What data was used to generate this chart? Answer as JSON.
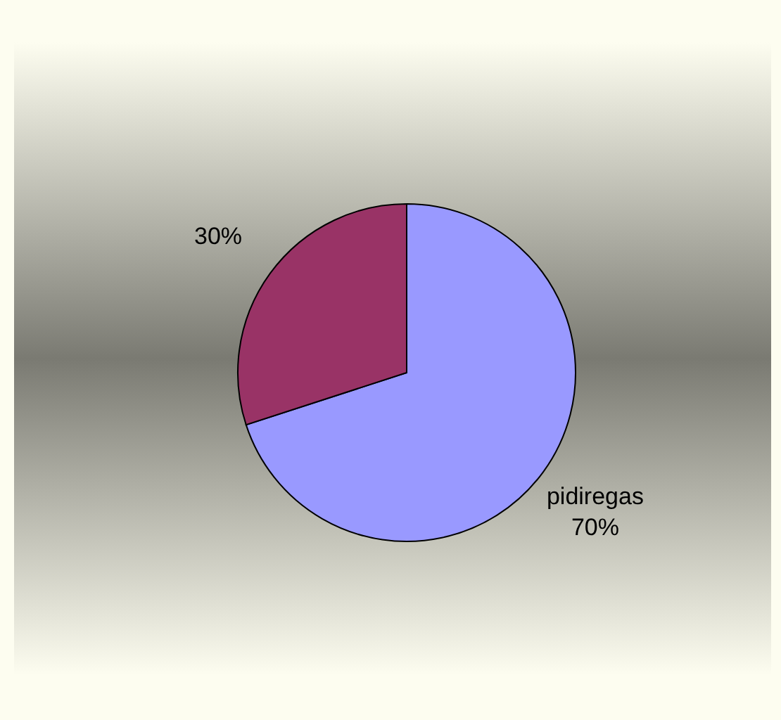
{
  "chart_data": {
    "type": "pie",
    "categories": [
      "pidiregas",
      null
    ],
    "values": [
      70,
      30
    ],
    "colors": [
      "#9999ff",
      "#993366"
    ],
    "value_labels": [
      "70%",
      "30%"
    ]
  }
}
